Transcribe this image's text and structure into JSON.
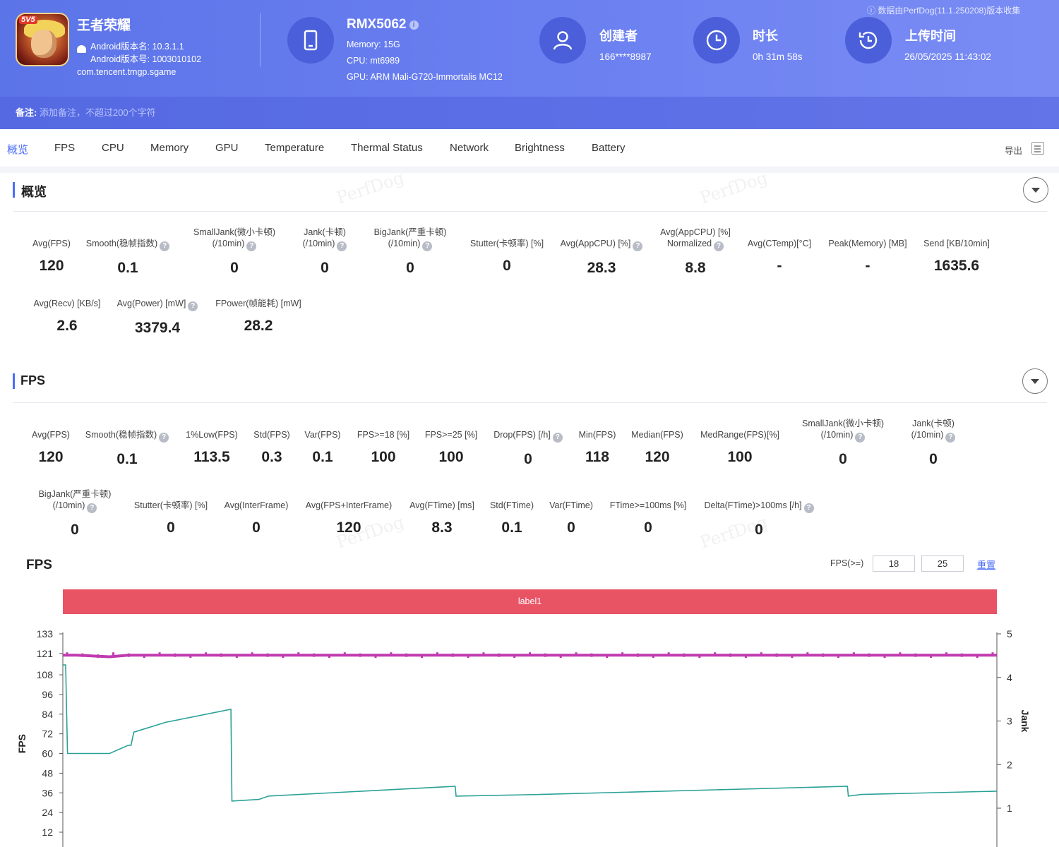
{
  "header": {
    "app_name": "王者荣耀",
    "app_icon_tag": "5V5",
    "android_version_name": "Android版本名: 10.3.1.1",
    "android_version_code": "Android版本号: 1003010102",
    "package": "com.tencent.tmgp.sgame",
    "device_name": "RMX5062",
    "device_memory": "Memory: 15G",
    "device_cpu": "CPU: mt6989",
    "device_gpu": "GPU: ARM Mali-G720-Immortalis MC12",
    "creator_label": "创建者",
    "creator_value": "166****8987",
    "duration_label": "时长",
    "duration_value": "0h 31m 58s",
    "upload_label": "上传时间",
    "upload_value": "26/05/2025 11:43:02",
    "source": "数据由PerfDog(11.1.250208)版本收集",
    "note_label": "备注:",
    "note_placeholder": "添加备注，不超过200个字符",
    "icons": [
      "tablet-icon",
      "user-icon",
      "clock-icon",
      "history-icon",
      "android-icon"
    ]
  },
  "tabs": [
    "概览",
    "FPS",
    "CPU",
    "Memory",
    "GPU",
    "Temperature",
    "Thermal Status",
    "Network",
    "Brightness",
    "Battery"
  ],
  "export_label": "导出",
  "watermark": "PerfDog",
  "overview": {
    "title": "概览",
    "row1": [
      {
        "l1": "",
        "l2": "Avg(FPS)",
        "q": false,
        "v": "120"
      },
      {
        "l1": "",
        "l2": "Smooth(稳帧指数)",
        "q": true,
        "v": "0.1"
      },
      {
        "l1": "SmallJank(微小卡顿)",
        "l2": "(/10min)",
        "q": true,
        "v": "0"
      },
      {
        "l1": "Jank(卡顿)",
        "l2": "(/10min)",
        "q": true,
        "v": "0"
      },
      {
        "l1": "BigJank(严重卡顿)",
        "l2": "(/10min)",
        "q": true,
        "v": "0"
      },
      {
        "l1": "",
        "l2": "Stutter(卡顿率) [%]",
        "q": false,
        "v": "0"
      },
      {
        "l1": "",
        "l2": "Avg(AppCPU) [%]",
        "q": true,
        "v": "28.3"
      },
      {
        "l1": "Avg(AppCPU) [%]",
        "l2": "Normalized",
        "q": true,
        "v": "8.8"
      },
      {
        "l1": "",
        "l2": "Avg(CTemp)[°C]",
        "q": false,
        "v": "-"
      },
      {
        "l1": "",
        "l2": "Peak(Memory) [MB]",
        "q": false,
        "v": "-"
      },
      {
        "l1": "",
        "l2": "Send [KB/10min]",
        "q": false,
        "v": "1635.6"
      }
    ],
    "row2": [
      {
        "l1": "",
        "l2": "Avg(Recv) [KB/s]",
        "q": false,
        "v": "2.6"
      },
      {
        "l1": "",
        "l2": "Avg(Power) [mW]",
        "q": true,
        "v": "3379.4"
      },
      {
        "l1": "",
        "l2": "FPower(帧能耗) [mW]",
        "q": false,
        "v": "28.2"
      }
    ]
  },
  "fps": {
    "title": "FPS",
    "row1": [
      {
        "l1": "",
        "l2": "Avg(FPS)",
        "q": false,
        "v": "120"
      },
      {
        "l1": "",
        "l2": "Smooth(稳帧指数)",
        "q": true,
        "v": "0.1"
      },
      {
        "l1": "",
        "l2": "1%Low(FPS)",
        "q": false,
        "v": "113.5"
      },
      {
        "l1": "",
        "l2": "Std(FPS)",
        "q": false,
        "v": "0.3"
      },
      {
        "l1": "",
        "l2": "Var(FPS)",
        "q": false,
        "v": "0.1"
      },
      {
        "l1": "",
        "l2": "FPS>=18 [%]",
        "q": false,
        "v": "100"
      },
      {
        "l1": "",
        "l2": "FPS>=25 [%]",
        "q": false,
        "v": "100"
      },
      {
        "l1": "",
        "l2": "Drop(FPS) [/h]",
        "q": true,
        "v": "0"
      },
      {
        "l1": "",
        "l2": "Min(FPS)",
        "q": false,
        "v": "118"
      },
      {
        "l1": "",
        "l2": "Median(FPS)",
        "q": false,
        "v": "120"
      },
      {
        "l1": "",
        "l2": "MedRange(FPS)[%]",
        "q": false,
        "v": "100"
      },
      {
        "l1": "SmallJank(微小卡顿)",
        "l2": "(/10min)",
        "q": true,
        "v": "0"
      },
      {
        "l1": "Jank(卡顿)",
        "l2": "(/10min)",
        "q": true,
        "v": "0"
      }
    ],
    "row2": [
      {
        "l1": "BigJank(严重卡顿)",
        "l2": "(/10min)",
        "q": true,
        "v": "0"
      },
      {
        "l1": "",
        "l2": "Stutter(卡顿率) [%]",
        "q": false,
        "v": "0"
      },
      {
        "l1": "",
        "l2": "Avg(InterFrame)",
        "q": false,
        "v": "0"
      },
      {
        "l1": "",
        "l2": "Avg(FPS+InterFrame)",
        "q": false,
        "v": "120"
      },
      {
        "l1": "",
        "l2": "Avg(FTime) [ms]",
        "q": false,
        "v": "8.3"
      },
      {
        "l1": "",
        "l2": "Std(FTime)",
        "q": false,
        "v": "0.1"
      },
      {
        "l1": "",
        "l2": "Var(FTime)",
        "q": false,
        "v": "0"
      },
      {
        "l1": "",
        "l2": "FTime>=100ms [%]",
        "q": false,
        "v": "0"
      },
      {
        "l1": "",
        "l2": "Delta(FTime)>100ms [/h]",
        "q": true,
        "v": "0"
      }
    ]
  },
  "chart_controls": {
    "title": "FPS",
    "filter_label": "FPS(>=)",
    "threshold_1": "18",
    "threshold_2": "25",
    "reset_label": "重置",
    "band_label": "label1"
  },
  "colors": {
    "accent": "#4a6cf7",
    "header": "#6a7ff0",
    "band": "#e95465",
    "fps_line": "#c03ab0",
    "second_line": "#2aa198"
  },
  "chart_data": {
    "type": "line",
    "title": "",
    "ylabel": "FPS",
    "y2label": "Jank",
    "ylim": [
      0,
      133
    ],
    "yticks": [
      12,
      24,
      36,
      48,
      60,
      72,
      84,
      96,
      108,
      121,
      133
    ],
    "y2lim": [
      0,
      5
    ],
    "y2ticks": [
      1,
      2,
      3,
      4,
      5
    ],
    "x": [
      0,
      0.3,
      0.5,
      1.5,
      5,
      7,
      7.3,
      7.6,
      11,
      18,
      18.1,
      21,
      22,
      42,
      42.1,
      51,
      84,
      84.1,
      85.5,
      100
    ],
    "series": [
      {
        "values": [
          120,
          120,
          120,
          120,
          119,
          120,
          120,
          120,
          120,
          120,
          120,
          120,
          120,
          120,
          120,
          120,
          120,
          120,
          120,
          120
        ]
      },
      {
        "values": [
          114,
          114,
          60,
          60,
          60,
          65,
          65,
          73,
          79,
          87,
          31,
          32,
          34,
          40,
          34,
          35,
          40,
          34,
          35,
          37
        ]
      }
    ]
  }
}
